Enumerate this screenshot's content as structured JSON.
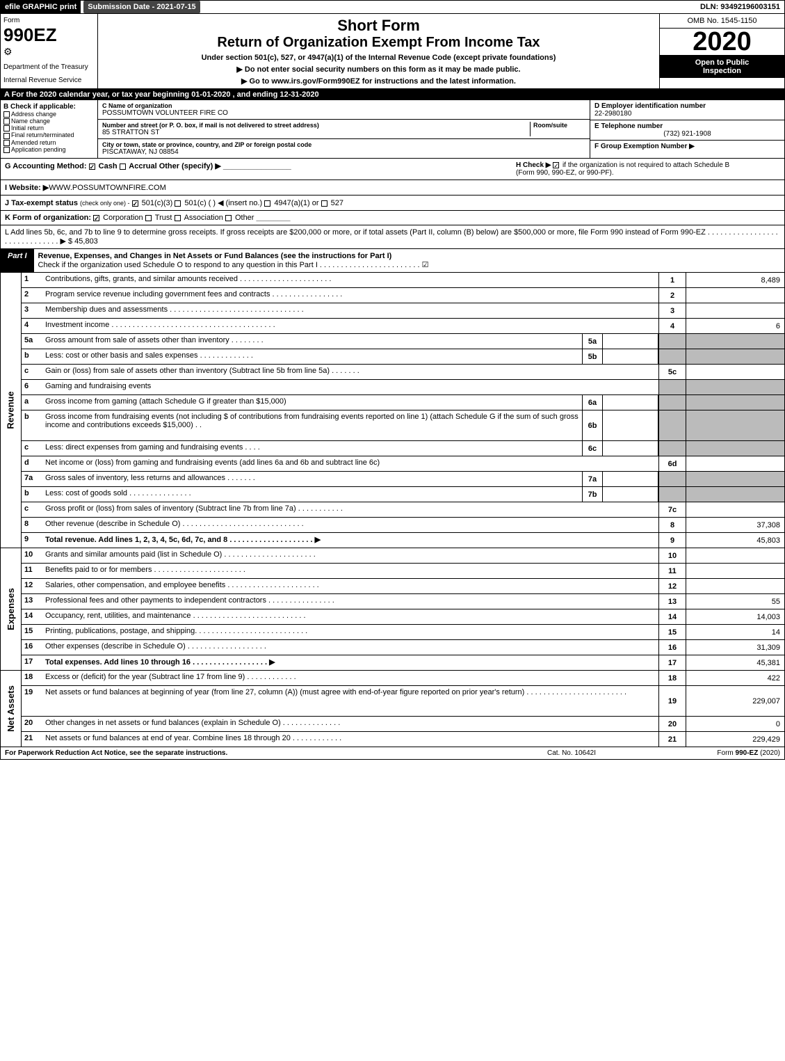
{
  "colors": {
    "black": "#000000",
    "grey": "#bbbbbb",
    "white": "#ffffff",
    "darkgrey": "#444444"
  },
  "topbar": {
    "efile": "efile GRAPHIC print",
    "subdate": "Submission Date - 2021-07-15",
    "dln": "DLN: 93492196003151"
  },
  "header": {
    "form_label": "Form",
    "form_no": "990EZ",
    "dept": "Department of the Treasury",
    "irs": "Internal Revenue Service",
    "short": "Short Form",
    "title": "Return of Organization Exempt From Income Tax",
    "subtitle": "Under section 501(c), 527, or 4947(a)(1) of the Internal Revenue Code (except private foundations)",
    "notice1": "▶ Do not enter social security numbers on this form as it may be made public.",
    "notice2": "▶ Go to www.irs.gov/Form990EZ for instructions and the latest information.",
    "omb": "OMB No. 1545-1150",
    "year": "2020",
    "inspect1": "Open to Public",
    "inspect2": "Inspection"
  },
  "period": "A For the 2020 calendar year, or tax year beginning 01-01-2020 , and ending 12-31-2020",
  "section_b": {
    "hdr": "B Check if applicable:",
    "items": [
      "Address change",
      "Name change",
      "Initial return",
      "Final return/terminated",
      "Amended return",
      "Application pending"
    ]
  },
  "section_c": {
    "name_lbl": "C Name of organization",
    "name_val": "POSSUMTOWN VOLUNTEER FIRE CO",
    "addr_lbl": "Number and street (or P. O. box, if mail is not delivered to street address)",
    "addr_val": "85 STRATTON ST",
    "room_lbl": "Room/suite",
    "city_lbl": "City or town, state or province, country, and ZIP or foreign postal code",
    "city_val": "PISCATAWAY, NJ  08854"
  },
  "section_d": {
    "lbl": "D Employer identification number",
    "val": "22-2980180"
  },
  "section_e": {
    "lbl": "E Telephone number",
    "val": "(732) 921-1908"
  },
  "section_f": {
    "lbl": "F Group Exemption Number ▶",
    "val": ""
  },
  "row_g": {
    "label": "G Accounting Method:",
    "cash": "Cash",
    "accrual": "Accrual",
    "other": "Other (specify) ▶"
  },
  "row_h": {
    "label": "H Check ▶",
    "text1": "if the organization is not required to attach Schedule B",
    "text2": "(Form 990, 990-EZ, or 990-PF)."
  },
  "row_i": {
    "label": "I Website: ▶",
    "val": "WWW.POSSUMTOWNFIRE.COM"
  },
  "row_j": {
    "label": "J Tax-exempt status",
    "small": "(check only one) -",
    "opt1": "501(c)(3)",
    "opt2": "501(c) (   ) ◀ (insert no.)",
    "opt3": "4947(a)(1) or",
    "opt4": "527"
  },
  "row_k": {
    "label": "K Form of organization:",
    "opts": [
      "Corporation",
      "Trust",
      "Association",
      "Other"
    ]
  },
  "row_l": {
    "text": "L Add lines 5b, 6c, and 7b to line 9 to determine gross receipts. If gross receipts are $200,000 or more, or if total assets (Part II, column (B) below) are $500,000 or more, file Form 990 instead of Form 990-EZ . . . . . . . . . . . . . . . . . . . . . . . . . . . . . . ▶",
    "val": "$ 45,803"
  },
  "part1": {
    "tab": "Part I",
    "desc": "Revenue, Expenses, and Changes in Net Assets or Fund Balances (see the instructions for Part I)",
    "sub": "Check if the organization used Schedule O to respond to any question in this Part I . . . . . . . . . . . . . . . . . . . . . . . . ☑"
  },
  "sections": {
    "revenue": {
      "label": "Revenue",
      "rows": [
        {
          "n": "1",
          "t": "Contributions, gifts, grants, and similar amounts received . . . . . . . . . . . . . . . . . . . . . .",
          "c": "1",
          "v": "8,489"
        },
        {
          "n": "2",
          "t": "Program service revenue including government fees and contracts . . . . . . . . . . . . . . . . .",
          "c": "2",
          "v": ""
        },
        {
          "n": "3",
          "t": "Membership dues and assessments . . . . . . . . . . . . . . . . . . . . . . . . . . . . . . . .",
          "c": "3",
          "v": ""
        },
        {
          "n": "4",
          "t": "Investment income . . . . . . . . . . . . . . . . . . . . . . . . . . . . . . . . . . . . . . .",
          "c": "4",
          "v": "6"
        },
        {
          "n": "5a",
          "t": "Gross amount from sale of assets other than inventory . . . . . . . .",
          "inn": "5a",
          "innv": "",
          "c": "",
          "v": "",
          "grey": true
        },
        {
          "n": "b",
          "t": "Less: cost or other basis and sales expenses . . . . . . . . . . . . .",
          "inn": "5b",
          "innv": "",
          "c": "",
          "v": "",
          "grey": true
        },
        {
          "n": "c",
          "t": "Gain or (loss) from sale of assets other than inventory (Subtract line 5b from line 5a) . . . . . . .",
          "c": "5c",
          "v": ""
        },
        {
          "n": "6",
          "t": "Gaming and fundraising events",
          "c": "",
          "v": "",
          "grey": true,
          "nocol": true
        },
        {
          "n": "a",
          "t": "Gross income from gaming (attach Schedule G if greater than $15,000)",
          "inn": "6a",
          "innv": "",
          "c": "",
          "v": "",
          "grey": true
        },
        {
          "n": "b",
          "t": "Gross income from fundraising events (not including $                    of contributions from fundraising events reported on line 1) (attach Schedule G if the sum of such gross income and contributions exceeds $15,000)   .   .",
          "inn": "6b",
          "innv": "",
          "c": "",
          "v": "",
          "grey": true,
          "tall": true
        },
        {
          "n": "c",
          "t": "Less: direct expenses from gaming and fundraising events      .   .   .   .",
          "inn": "6c",
          "innv": "",
          "c": "",
          "v": "",
          "grey": true
        },
        {
          "n": "d",
          "t": "Net income or (loss) from gaming and fundraising events (add lines 6a and 6b and subtract line 6c)",
          "c": "6d",
          "v": ""
        },
        {
          "n": "7a",
          "t": "Gross sales of inventory, less returns and allowances . . . . . . .",
          "inn": "7a",
          "innv": "",
          "c": "",
          "v": "",
          "grey": true
        },
        {
          "n": "b",
          "t": "Less: cost of goods sold       .   .   .   .   .   .   .   .   .   .   .   .   .   .   .",
          "inn": "7b",
          "innv": "",
          "c": "",
          "v": "",
          "grey": true
        },
        {
          "n": "c",
          "t": "Gross profit or (loss) from sales of inventory (Subtract line 7b from line 7a) . . . . . . . . . . .",
          "c": "7c",
          "v": ""
        },
        {
          "n": "8",
          "t": "Other revenue (describe in Schedule O) . . . . . . . . . . . . . . . . . . . . . . . . . . . . .",
          "c": "8",
          "v": "37,308"
        },
        {
          "n": "9",
          "t": "Total revenue. Add lines 1, 2, 3, 4, 5c, 6d, 7c, and 8  . . . . . . . . . . . . . . . . . . . . ▶",
          "c": "9",
          "v": "45,803",
          "bold": true
        }
      ]
    },
    "expenses": {
      "label": "Expenses",
      "rows": [
        {
          "n": "10",
          "t": "Grants and similar amounts paid (list in Schedule O) . . . . . . . . . . . . . . . . . . . . . .",
          "c": "10",
          "v": ""
        },
        {
          "n": "11",
          "t": "Benefits paid to or for members      .   .   .   .   .   .   .   .   .   .   .   .   .   .   .   .   .   .   .   .   .   .",
          "c": "11",
          "v": ""
        },
        {
          "n": "12",
          "t": "Salaries, other compensation, and employee benefits . . . . . . . . . . . . . . . . . . . . . .",
          "c": "12",
          "v": ""
        },
        {
          "n": "13",
          "t": "Professional fees and other payments to independent contractors . . . . . . . . . . . . . . . .",
          "c": "13",
          "v": "55"
        },
        {
          "n": "14",
          "t": "Occupancy, rent, utilities, and maintenance . . . . . . . . . . . . . . . . . . . . . . . . . . .",
          "c": "14",
          "v": "14,003"
        },
        {
          "n": "15",
          "t": "Printing, publications, postage, and shipping. . . . . . . . . . . . . . . . . . . . . . . . . . .",
          "c": "15",
          "v": "14"
        },
        {
          "n": "16",
          "t": "Other expenses (describe in Schedule O)     .   .   .   .   .   .   .   .   .   .   .   .   .   .   .   .   .   .   .",
          "c": "16",
          "v": "31,309"
        },
        {
          "n": "17",
          "t": "Total expenses. Add lines 10 through 16     .   .   .   .   .   .   .   .   .   .   .   .   .   .   .   .   .   . ▶",
          "c": "17",
          "v": "45,381",
          "bold": true
        }
      ]
    },
    "net": {
      "label": "Net Assets",
      "rows": [
        {
          "n": "18",
          "t": "Excess or (deficit) for the year (Subtract line 17 from line 9)       .   .   .   .   .   .   .   .   .   .   .   .",
          "c": "18",
          "v": "422"
        },
        {
          "n": "19",
          "t": "Net assets or fund balances at beginning of year (from line 27, column (A)) (must agree with end-of-year figure reported on prior year's return) . . . . . . . . . . . . . . . . . . . . . . . .",
          "c": "19",
          "v": "229,007",
          "tall": true,
          "greytop": true
        },
        {
          "n": "20",
          "t": "Other changes in net assets or fund balances (explain in Schedule O) . . . . . . . . . . . . . .",
          "c": "20",
          "v": "0"
        },
        {
          "n": "21",
          "t": "Net assets or fund balances at end of year. Combine lines 18 through 20 . . . . . . . . . . . .",
          "c": "21",
          "v": "229,429"
        }
      ]
    }
  },
  "footer": {
    "left": "For Paperwork Reduction Act Notice, see the separate instructions.",
    "mid": "Cat. No. 10642I",
    "right": "Form 990-EZ (2020)"
  }
}
